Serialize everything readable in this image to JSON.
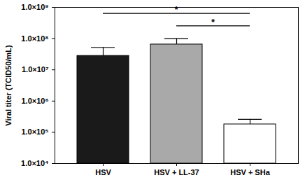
{
  "chart_data": {
    "type": "bar",
    "categories": [
      "HSV",
      "HSV + LL-37",
      "HSV + SHa"
    ],
    "values": [
      28000000,
      65000000,
      180000
    ],
    "errors": [
      24000000,
      35000000,
      80000
    ],
    "colors": [
      "#1a1a1a",
      "#a9a9a9",
      "#ffffff"
    ],
    "y_label": "Viral titer (TCID50/mL)",
    "log": "y",
    "ylim": [
      10000,
      1000000000
    ],
    "yticks": [
      {
        "value": 10000,
        "label": "1.0×10⁴"
      },
      {
        "value": 100000,
        "label": "1.0×10⁵"
      },
      {
        "value": 1000000,
        "label": "1.0×10⁶"
      },
      {
        "value": 10000000,
        "label": "1.0×10⁷"
      },
      {
        "value": 100000000,
        "label": "1.0×10⁸"
      },
      {
        "value": 1000000000,
        "label": "1.0×10⁹"
      }
    ],
    "grid": false,
    "comparisons": [
      {
        "from": "HSV + LL-37",
        "to": "HSV + SHa",
        "label": "*"
      },
      {
        "from": "HSV",
        "to": "HSV + SHa",
        "label": "*"
      }
    ]
  }
}
